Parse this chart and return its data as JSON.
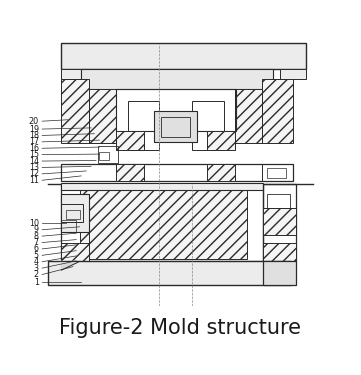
{
  "title": "Figure-2 Mold structure",
  "title_fontsize": 15,
  "bg_color": "#ffffff",
  "line_color": "#2a2a2a",
  "label_color": "#1a1a1a",
  "figsize": [
    3.61,
    3.75
  ],
  "dpi": 100
}
